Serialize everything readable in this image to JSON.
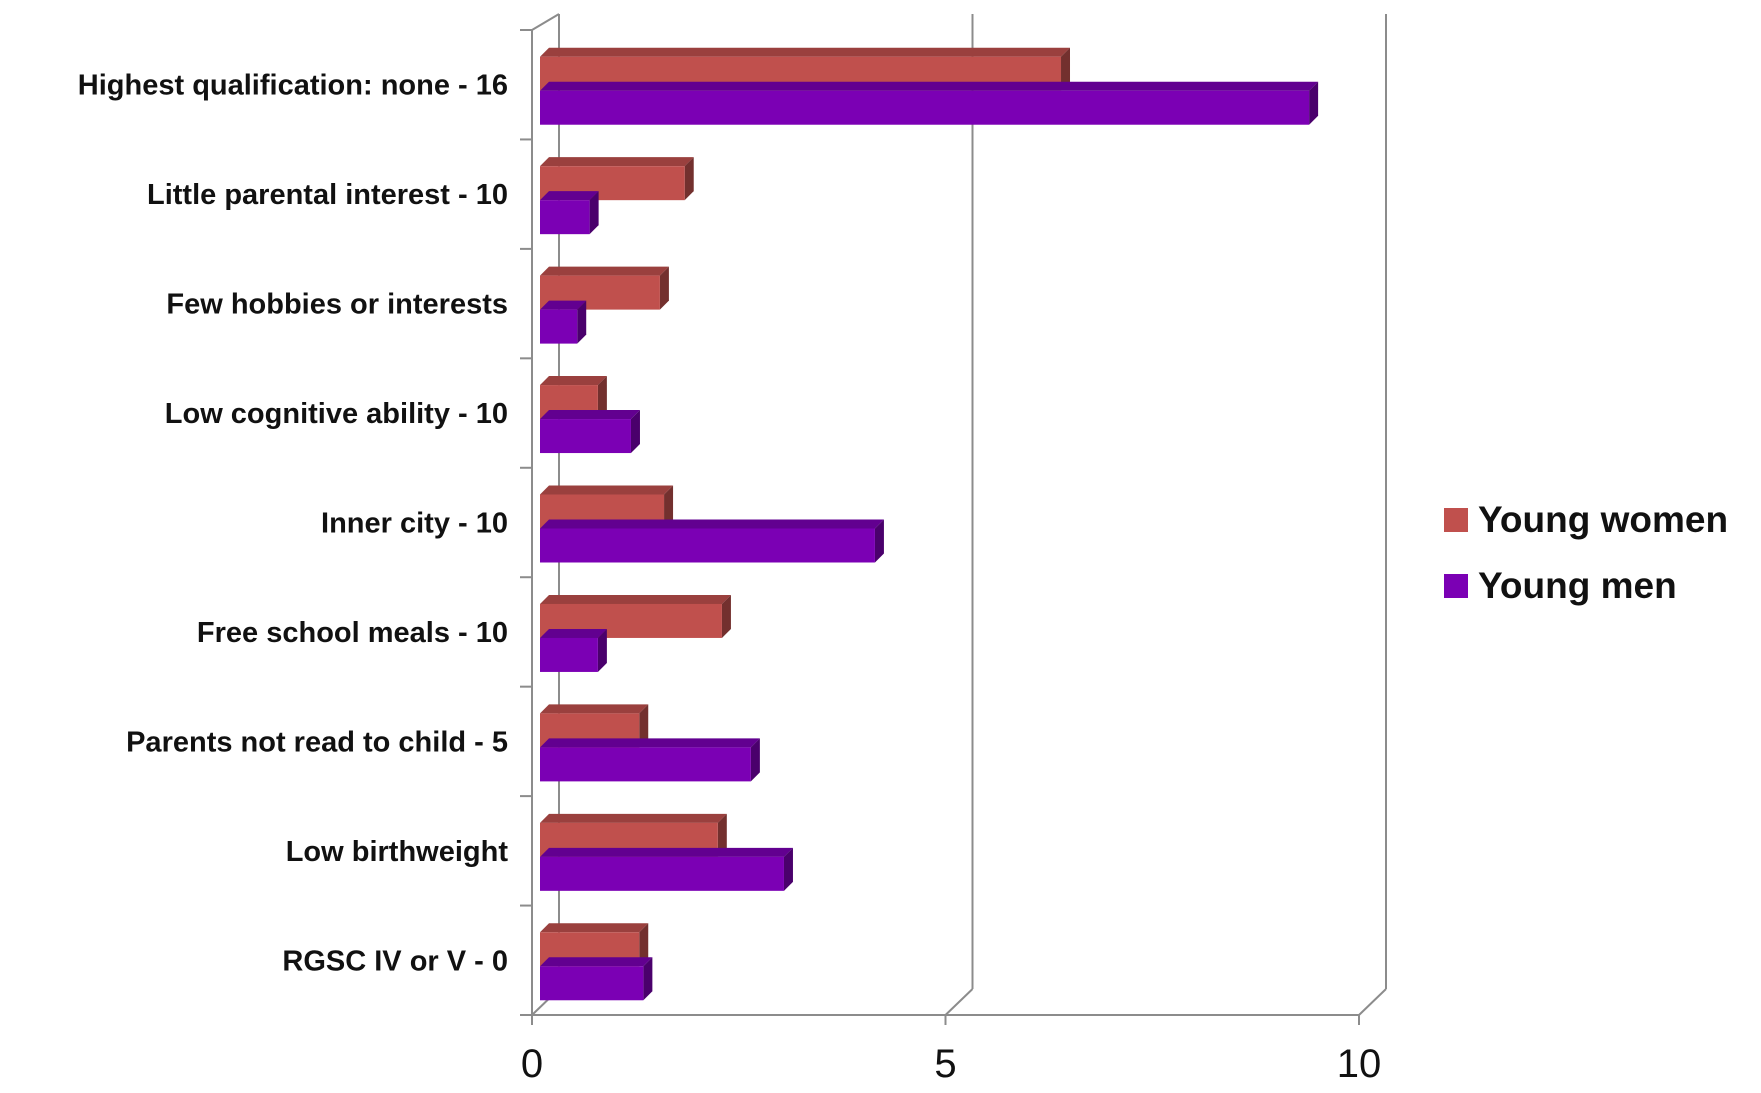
{
  "chart_data": {
    "type": "bar",
    "orientation": "horizontal",
    "categories": [
      "Highest qualification: none - 16",
      "Little parental interest - 10",
      "Few hobbies or interests",
      "Low cognitive ability - 10",
      "Inner city  - 10",
      "Free school meals - 10",
      "Parents not read to child - 5",
      "Low birthweight",
      "RGSC IV or V - 0"
    ],
    "series": [
      {
        "name": "Young women",
        "color": "#C0504D",
        "values": [
          6.3,
          1.75,
          1.45,
          0.7,
          1.5,
          2.2,
          1.2,
          2.15,
          1.2
        ]
      },
      {
        "name": "Young men",
        "color": "#7B00B4",
        "values": [
          9.3,
          0.6,
          0.45,
          1.1,
          4.05,
          0.7,
          2.55,
          2.95,
          1.25
        ]
      }
    ],
    "xlim": [
      0,
      10
    ],
    "xticks": [
      "0",
      "5",
      "10"
    ],
    "grid": true,
    "legend": "right",
    "title": "",
    "xlabel": "",
    "ylabel": ""
  }
}
